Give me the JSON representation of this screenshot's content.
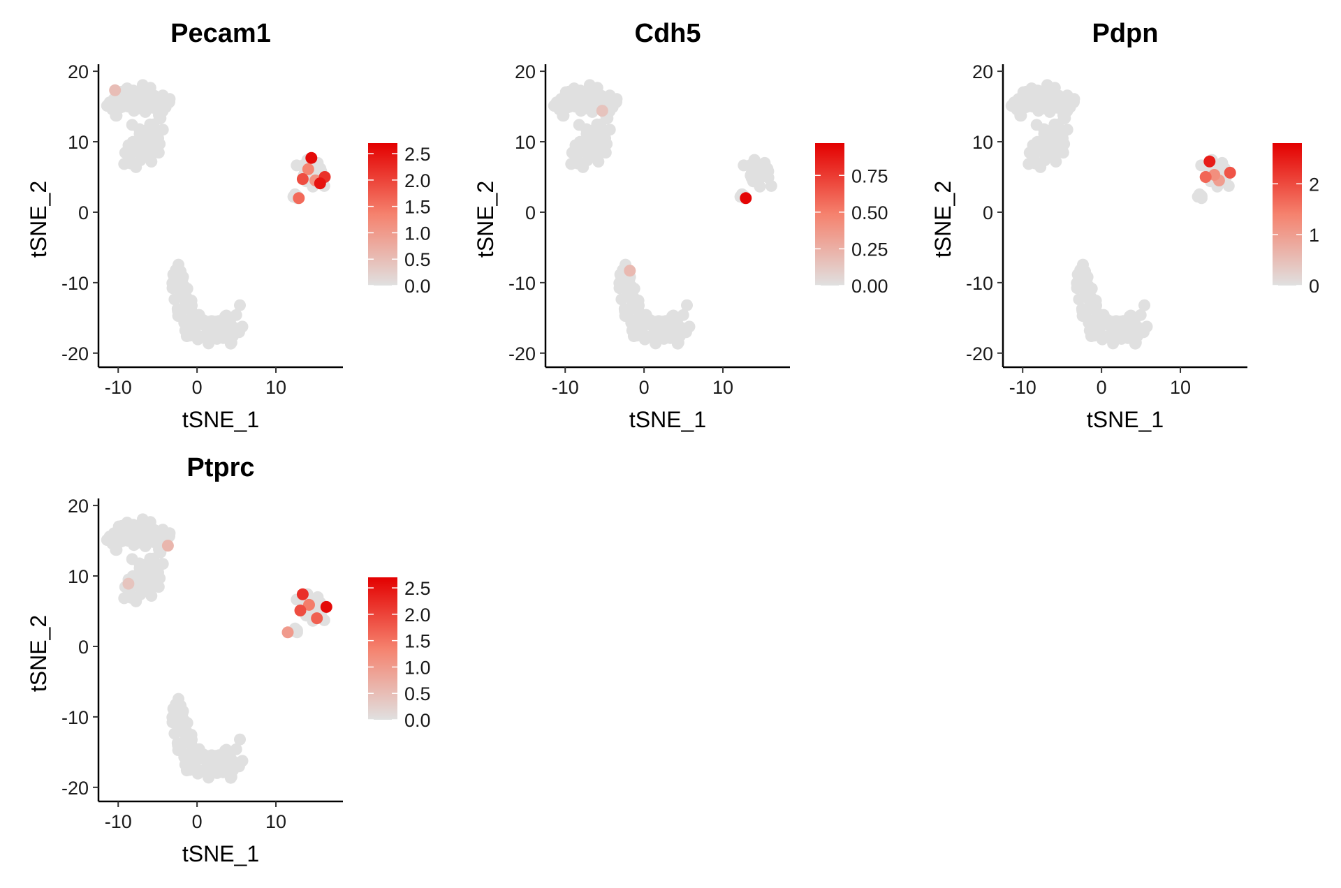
{
  "chart_data": [
    {
      "type": "scatter",
      "title": "Pecam1",
      "xlabel": "tSNE_1",
      "ylabel": "tSNE_2",
      "xlim": [
        -12.5,
        18.5
      ],
      "ylim": [
        -22,
        21
      ],
      "xticks": [
        "-10",
        "0",
        "10"
      ],
      "yticks": [
        "20",
        "10",
        "0",
        "-10",
        "-20"
      ],
      "color_scale": {
        "low": "#e0e0e0",
        "high": "#e30000",
        "min": 0,
        "max": 2.7,
        "labels": [
          "0.0",
          "0.5",
          "1.0",
          "1.5",
          "2.0",
          "2.5"
        ],
        "values": [
          0,
          0.5,
          1.0,
          1.5,
          2.0,
          2.5
        ]
      },
      "expressing_points": [
        {
          "x": 14.5,
          "y": 7.7,
          "value": 2.6
        },
        {
          "x": 15.6,
          "y": 4.1,
          "value": 2.5
        },
        {
          "x": 16.2,
          "y": 5.0,
          "value": 2.2
        },
        {
          "x": 13.4,
          "y": 4.7,
          "value": 1.9
        },
        {
          "x": 12.9,
          "y": 2.0,
          "value": 1.6
        },
        {
          "x": 14.1,
          "y": 6.1,
          "value": 1.3
        },
        {
          "x": 15.0,
          "y": 4.5,
          "value": 1.1
        },
        {
          "x": -10.4,
          "y": 17.3,
          "value": 0.5
        }
      ]
    },
    {
      "type": "scatter",
      "title": "Cdh5",
      "xlabel": "tSNE_1",
      "ylabel": "tSNE_2",
      "xlim": [
        -12.5,
        18.5
      ],
      "ylim": [
        -22,
        21
      ],
      "xticks": [
        "-10",
        "0",
        "10"
      ],
      "yticks": [
        "20",
        "10",
        "0",
        "-10",
        "-20"
      ],
      "color_scale": {
        "low": "#e0e0e0",
        "high": "#e30000",
        "min": 0,
        "max": 0.97,
        "labels": [
          "0.00",
          "0.25",
          "0.50",
          "0.75"
        ],
        "values": [
          0,
          0.25,
          0.5,
          0.75
        ]
      },
      "expressing_points": [
        {
          "x": 12.9,
          "y": 2.0,
          "value": 0.95
        },
        {
          "x": -1.8,
          "y": -8.3,
          "value": 0.2
        },
        {
          "x": -5.3,
          "y": 14.4,
          "value": 0.15
        }
      ]
    },
    {
      "type": "scatter",
      "title": "Pdpn",
      "xlabel": "tSNE_1",
      "ylabel": "tSNE_2",
      "xlim": [
        -12.5,
        18.5
      ],
      "ylim": [
        -22,
        21
      ],
      "xticks": [
        "-10",
        "0",
        "10"
      ],
      "yticks": [
        "20",
        "10",
        "0",
        "-10",
        "-20"
      ],
      "color_scale": {
        "low": "#e0e0e0",
        "high": "#e30000",
        "min": 0,
        "max": 2.8,
        "labels": [
          "0",
          "1",
          "2"
        ],
        "values": [
          0,
          1,
          2
        ]
      },
      "expressing_points": [
        {
          "x": 13.7,
          "y": 7.2,
          "value": 2.5
        },
        {
          "x": 16.3,
          "y": 5.6,
          "value": 1.9
        },
        {
          "x": 13.2,
          "y": 5.0,
          "value": 1.7
        },
        {
          "x": 14.3,
          "y": 5.3,
          "value": 1.2
        },
        {
          "x": 14.9,
          "y": 4.5,
          "value": 1.0
        }
      ]
    },
    {
      "type": "scatter",
      "title": "Ptprc",
      "xlabel": "tSNE_1",
      "ylabel": "tSNE_2",
      "xlim": [
        -12.5,
        18.5
      ],
      "ylim": [
        -22,
        21
      ],
      "xticks": [
        "-10",
        "0",
        "10"
      ],
      "yticks": [
        "20",
        "10",
        "0",
        "-10",
        "-20"
      ],
      "color_scale": {
        "low": "#e0e0e0",
        "high": "#e30000",
        "min": 0,
        "max": 2.7,
        "labels": [
          "0.0",
          "0.5",
          "1.0",
          "1.5",
          "2.0",
          "2.5"
        ],
        "values": [
          0,
          0.5,
          1.0,
          1.5,
          2.0,
          2.5
        ]
      },
      "expressing_points": [
        {
          "x": 16.4,
          "y": 5.6,
          "value": 2.6
        },
        {
          "x": 13.4,
          "y": 7.4,
          "value": 2.2
        },
        {
          "x": 13.1,
          "y": 5.1,
          "value": 1.9
        },
        {
          "x": 15.2,
          "y": 4.0,
          "value": 1.7
        },
        {
          "x": 14.2,
          "y": 5.9,
          "value": 1.4
        },
        {
          "x": 11.5,
          "y": 2.0,
          "value": 1.0
        },
        {
          "x": -3.7,
          "y": 14.3,
          "value": 0.6
        },
        {
          "x": -8.7,
          "y": 8.9,
          "value": 0.4
        }
      ]
    }
  ]
}
